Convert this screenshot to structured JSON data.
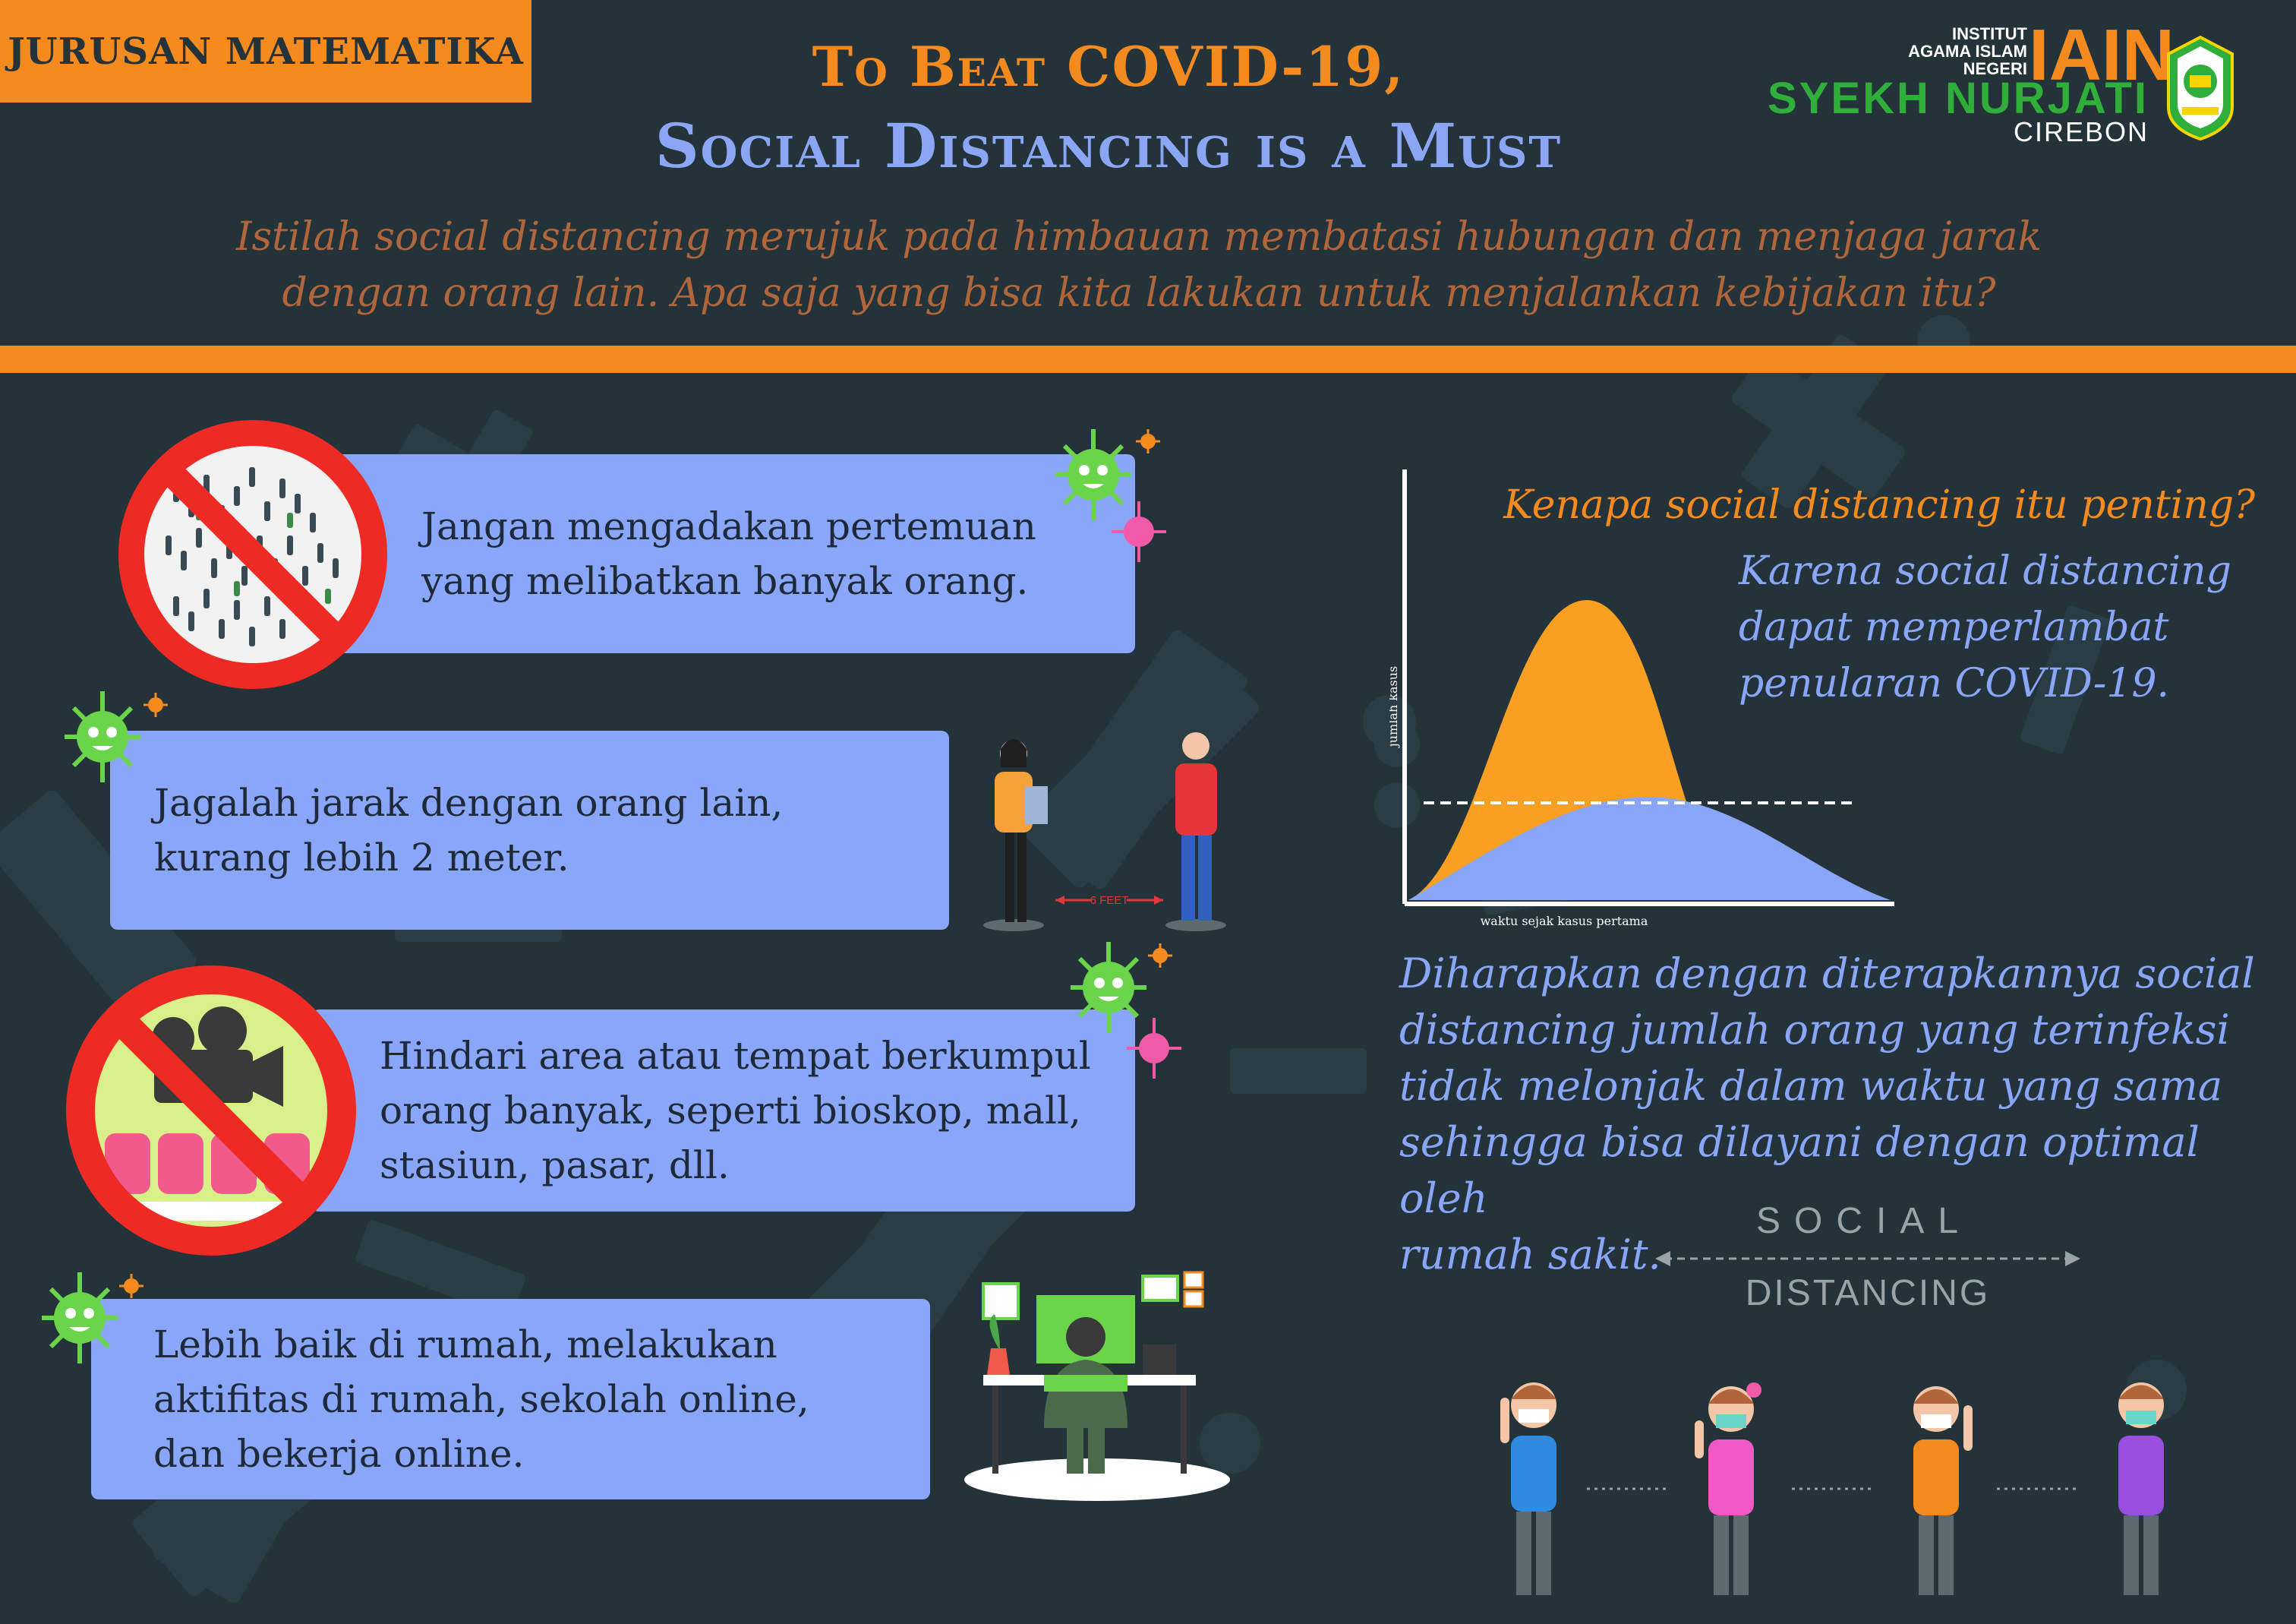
{
  "header": {
    "badge": "JURUSAN MATEMATIKA",
    "title_line1": "To Beat COVID-19,",
    "title_line2": "Social Distancing is a Must"
  },
  "logo": {
    "institut": "INSTITUT",
    "agama": "AGAMA ISLAM",
    "negeri": "NEGERI",
    "iain": "IAIN",
    "name": "SYEKH NURJATI",
    "city": "CIREBON"
  },
  "intro": {
    "line1": "Istilah social distancing merujuk pada himbauan membatasi hubungan dan menjaga jarak",
    "line2": "dengan orang lain. Apa saja yang bisa kita lakukan untuk menjalankan kebijakan itu?"
  },
  "tips": [
    {
      "line1": "Jangan mengadakan pertemuan",
      "line2": "yang melibatkan banyak orang."
    },
    {
      "line1": "Jagalah jarak dengan orang lain,",
      "line2": "kurang lebih 2 meter."
    },
    {
      "line1": "Hindari area atau tempat berkumpul",
      "line2": "orang banyak, seperti bioskop, mall,",
      "line3": "stasiun, pasar, dll."
    },
    {
      "line1": "Lebih baik di rumah, melakukan",
      "line2": "aktifitas di rumah, sekolah online,",
      "line3": "dan bekerja online."
    }
  ],
  "distance_label": "6 FEET",
  "chart": {
    "ylabel": "jumlah kasus",
    "xlabel": "waktu sejak kasus pertama"
  },
  "right": {
    "question": "Kenapa social distancing itu penting?",
    "answer_line1": "Karena social distancing",
    "answer_line2": "dapat memperlambat",
    "answer_line3": "penularan COVID-19.",
    "hope_line1": "Diharapkan dengan diterapkannya social",
    "hope_line2": "distancing jumlah orang yang terinfeksi",
    "hope_line3": "tidak melonjak dalam waktu yang sama",
    "hope_line4": "sehingga bisa dilayani dengan optimal oleh",
    "hope_line5": "rumah sakit."
  },
  "sd_graphic": {
    "word1": "SOCIAL",
    "word2": "DISTANCING"
  },
  "colors": {
    "background": "#233339",
    "accent_orange": "#f58a1f",
    "card_blue": "#8aa6f8",
    "logo_green": "#2fae3a",
    "prohibit_red": "#ee2a24"
  }
}
